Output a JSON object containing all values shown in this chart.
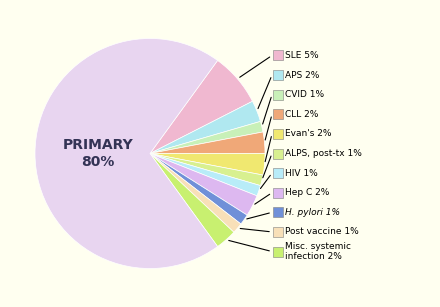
{
  "primary": {
    "label": "PRIMARY\n80%",
    "pct": 80,
    "color": "#e8d5f0"
  },
  "secondary": [
    {
      "label": "SLE 5%",
      "pct": 5,
      "color": "#f0b8d0"
    },
    {
      "label": "APS 2%",
      "pct": 2,
      "color": "#b0e8f0"
    },
    {
      "label": "CVID 1%",
      "pct": 1,
      "color": "#c8f0b8"
    },
    {
      "label": "CLL 2%",
      "pct": 2,
      "color": "#f0a878"
    },
    {
      "label": "Evan's 2%",
      "pct": 2,
      "color": "#f0e870"
    },
    {
      "label": "ALPS, post-tx 1%",
      "pct": 1,
      "color": "#d8f090"
    },
    {
      "label": "HIV 1%",
      "pct": 1,
      "color": "#b8ecf8"
    },
    {
      "label": "Hep C 2%",
      "pct": 2,
      "color": "#ddb8f0"
    },
    {
      "label": "H. pylori 1%",
      "pct": 1,
      "color": "#7090d8",
      "italic": true
    },
    {
      "label": "Post vaccine 1%",
      "pct": 1,
      "color": "#f8e0b8"
    },
    {
      "label": "Misc. systemic\ninfection 2%",
      "pct": 2,
      "color": "#c8f070"
    }
  ],
  "background_color": "#fffff0",
  "figsize": [
    4.4,
    3.07
  ],
  "dpi": 100
}
